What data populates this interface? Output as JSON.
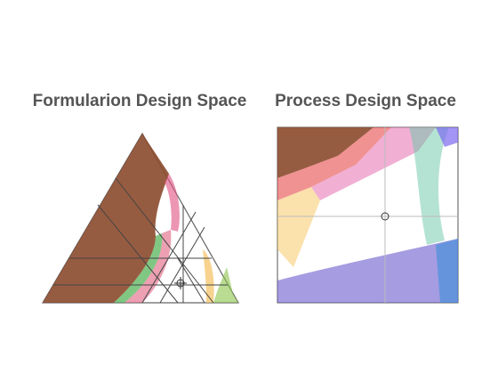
{
  "panels": [
    {
      "title": "Formularion Design Space"
    },
    {
      "title": "Process Design Space"
    }
  ]
}
